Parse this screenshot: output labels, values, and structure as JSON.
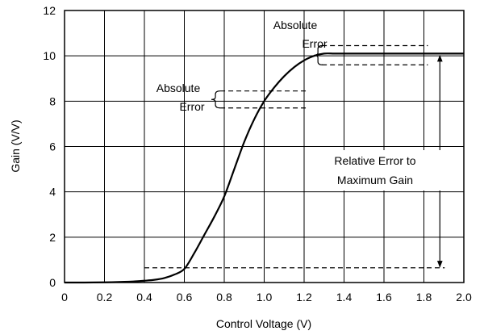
{
  "chart_data": {
    "type": "line",
    "xlabel": "Control Voltage (V)",
    "ylabel": "Gain (V/V)",
    "xlim": [
      0,
      2.0
    ],
    "ylim": [
      0,
      12
    ],
    "grid": true,
    "x_ticks": [
      "0",
      "0.2",
      "0.4",
      "0.6",
      "0.8",
      "1.0",
      "1.2",
      "1.4",
      "1.6",
      "1.8",
      "2.0"
    ],
    "y_ticks": [
      "0",
      "2",
      "4",
      "6",
      "8",
      "10",
      "12"
    ],
    "series": [
      {
        "x": [
          0,
          0.1,
          0.2,
          0.3,
          0.35,
          0.4,
          0.45,
          0.5,
          0.55,
          0.6,
          0.65,
          0.7,
          0.75,
          0.8,
          0.85,
          0.9,
          0.95,
          1.0,
          1.05,
          1.1,
          1.15,
          1.2,
          1.25,
          1.3,
          1.35,
          1.4,
          1.5,
          1.6,
          1.7,
          1.8,
          1.9,
          2.0
        ],
        "y": [
          0,
          0,
          0.01,
          0.03,
          0.05,
          0.08,
          0.12,
          0.2,
          0.35,
          0.6,
          1.3,
          2.1,
          2.9,
          3.8,
          5.0,
          6.2,
          7.2,
          8.0,
          8.6,
          9.1,
          9.5,
          9.8,
          10.0,
          10.1,
          10.1,
          10.1,
          10.1,
          10.1,
          10.1,
          10.1,
          10.1,
          10.1
        ]
      }
    ],
    "annotations": {
      "absolute_error_upper": {
        "line1": "Absolute",
        "line2": "Error",
        "dashed_levels": [
          10.45,
          9.6
        ],
        "x_range": [
          1.35,
          1.82
        ]
      },
      "absolute_error_lower": {
        "line1": "Absolute",
        "line2": "Error",
        "dashed_levels": [
          8.45,
          7.7
        ],
        "x_range": [
          0.78,
          1.21
        ]
      },
      "relative_error": {
        "line1": "Relative Error to",
        "line2": "Maximum Gain",
        "arrow_x": 1.88,
        "arrow_range": [
          0.65,
          10.05
        ],
        "baseline_level": 0.65,
        "baseline_x_range": [
          0.4,
          1.88
        ]
      }
    }
  }
}
